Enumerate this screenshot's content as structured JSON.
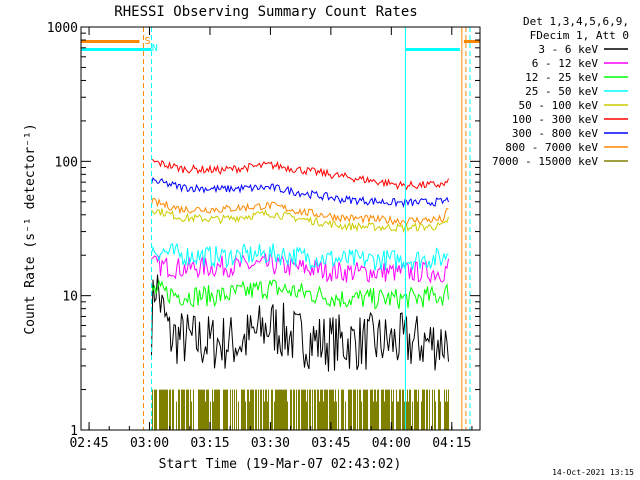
{
  "chart_data": {
    "type": "line",
    "title": "RHESSI Observing Summary Count Rates",
    "xlabel": "Start Time (19-Mar-07 02:43:02)",
    "ylabel": "Count Rate (s⁻¹ detector⁻¹)",
    "yscale": "log",
    "ylim": [
      1,
      1000
    ],
    "xlim_minutes_after_0243": [
      0,
      99
    ],
    "x_ticks": [
      {
        "label": "02:45",
        "minute": 2
      },
      {
        "label": "03:00",
        "minute": 17
      },
      {
        "label": "03:15",
        "minute": 32
      },
      {
        "label": "03:30",
        "minute": 47
      },
      {
        "label": "03:45",
        "minute": 62
      },
      {
        "label": "04:00",
        "minute": 77
      },
      {
        "label": "04:15",
        "minute": 92
      }
    ],
    "y_ticks": [
      {
        "label": "1",
        "value": 1
      },
      {
        "label": "10",
        "value": 10
      },
      {
        "label": "100",
        "value": 100
      },
      {
        "label": "1000",
        "value": 1000
      }
    ],
    "legend": {
      "header_line1": "Det 1,3,4,5,6,9,",
      "header_line2": "FDecim 1, Att 0",
      "placement": "right"
    },
    "series": [
      {
        "name": "3 - 6 keV",
        "color": "#000000",
        "points": [
          [
            17.5,
            6
          ],
          [
            18.5,
            13
          ],
          [
            20,
            8
          ],
          [
            22,
            5
          ],
          [
            30,
            4.5
          ],
          [
            40,
            4.5
          ],
          [
            47,
            6
          ],
          [
            52,
            5
          ],
          [
            60,
            4.5
          ],
          [
            70,
            4.5
          ],
          [
            80,
            4.5
          ],
          [
            90,
            4.5
          ],
          [
            91.3,
            5
          ]
        ]
      },
      {
        "name": "6 - 12 keV",
        "color": "#ff00ff",
        "points": [
          [
            17.5,
            17
          ],
          [
            25,
            16
          ],
          [
            35,
            16.5
          ],
          [
            47,
            17
          ],
          [
            55,
            16
          ],
          [
            65,
            15
          ],
          [
            80,
            15
          ],
          [
            90,
            15
          ],
          [
            91.3,
            17
          ]
        ]
      },
      {
        "name": "12 - 25 keV",
        "color": "#00ff00",
        "points": [
          [
            17.5,
            11
          ],
          [
            25,
            10
          ],
          [
            35,
            10
          ],
          [
            47,
            11.5
          ],
          [
            55,
            10.5
          ],
          [
            65,
            9.5
          ],
          [
            80,
            9.5
          ],
          [
            90,
            10
          ],
          [
            91.3,
            11
          ]
        ]
      },
      {
        "name": "25 - 50 keV",
        "color": "#00ffff",
        "points": [
          [
            17.5,
            22
          ],
          [
            25,
            20
          ],
          [
            35,
            19.5
          ],
          [
            47,
            20.5
          ],
          [
            55,
            19.5
          ],
          [
            65,
            18.5
          ],
          [
            80,
            18.5
          ],
          [
            90,
            19
          ],
          [
            91.3,
            22
          ]
        ]
      },
      {
        "name": "50 - 100 keV",
        "color": "#cccc00",
        "points": [
          [
            17.5,
            44
          ],
          [
            25,
            38
          ],
          [
            35,
            37
          ],
          [
            47,
            41
          ],
          [
            55,
            37
          ],
          [
            65,
            33
          ],
          [
            80,
            32
          ],
          [
            90,
            33
          ],
          [
            91.3,
            38
          ]
        ]
      },
      {
        "name": "100 - 300 keV",
        "color": "#ff0000",
        "points": [
          [
            17.5,
            100
          ],
          [
            25,
            88
          ],
          [
            35,
            86
          ],
          [
            47,
            94
          ],
          [
            55,
            86
          ],
          [
            65,
            77
          ],
          [
            80,
            66
          ],
          [
            90,
            67
          ],
          [
            91.3,
            70
          ]
        ]
      },
      {
        "name": "300 - 800 keV",
        "color": "#0000ff",
        "points": [
          [
            17.5,
            72
          ],
          [
            25,
            64
          ],
          [
            35,
            62
          ],
          [
            47,
            64
          ],
          [
            55,
            58
          ],
          [
            65,
            52
          ],
          [
            80,
            49
          ],
          [
            90,
            50
          ],
          [
            91.3,
            52
          ]
        ]
      },
      {
        "name": "800 - 7000 keV",
        "color": "#ff8800",
        "points": [
          [
            17.5,
            50
          ],
          [
            25,
            44
          ],
          [
            35,
            44
          ],
          [
            47,
            47
          ],
          [
            55,
            42
          ],
          [
            65,
            38
          ],
          [
            80,
            36
          ],
          [
            90,
            37
          ],
          [
            91.3,
            45
          ]
        ]
      },
      {
        "name": "7000 - 15000 keV",
        "color": "#808000",
        "points": [
          [
            17.5,
            2
          ],
          [
            91.3,
            2
          ]
        ]
      }
    ],
    "annotations": [
      {
        "text": "S",
        "minute": 16.5,
        "color": "#ff8800"
      },
      {
        "text": "N",
        "minute": 18.3,
        "color": "#00ffff"
      }
    ],
    "flag_bars": [
      {
        "name": "saa-bar",
        "color": "#ff8800",
        "value": 780,
        "ranges": [
          [
            0,
            14.5
          ],
          [
            95,
            99
          ]
        ]
      },
      {
        "name": "night-bar",
        "color": "#00ffff",
        "value": 680,
        "ranges": [
          [
            0,
            17.5
          ],
          [
            80.5,
            94
          ]
        ]
      }
    ],
    "vertical_markers": [
      {
        "minute": 15.5,
        "color": "#ff8800",
        "style": "dashed"
      },
      {
        "minute": 17.5,
        "color": "#00ffff",
        "style": "dashed"
      },
      {
        "minute": 80.5,
        "color": "#00ffff",
        "style": "solid"
      },
      {
        "minute": 94.5,
        "color": "#ff8800",
        "style": "solid"
      },
      {
        "minute": 95.5,
        "color": "#ff8800",
        "style": "dashed"
      },
      {
        "minute": 96.5,
        "color": "#00ffff",
        "style": "dashed"
      }
    ],
    "footer_timestamp": "14-Oct-2021 13:15"
  }
}
